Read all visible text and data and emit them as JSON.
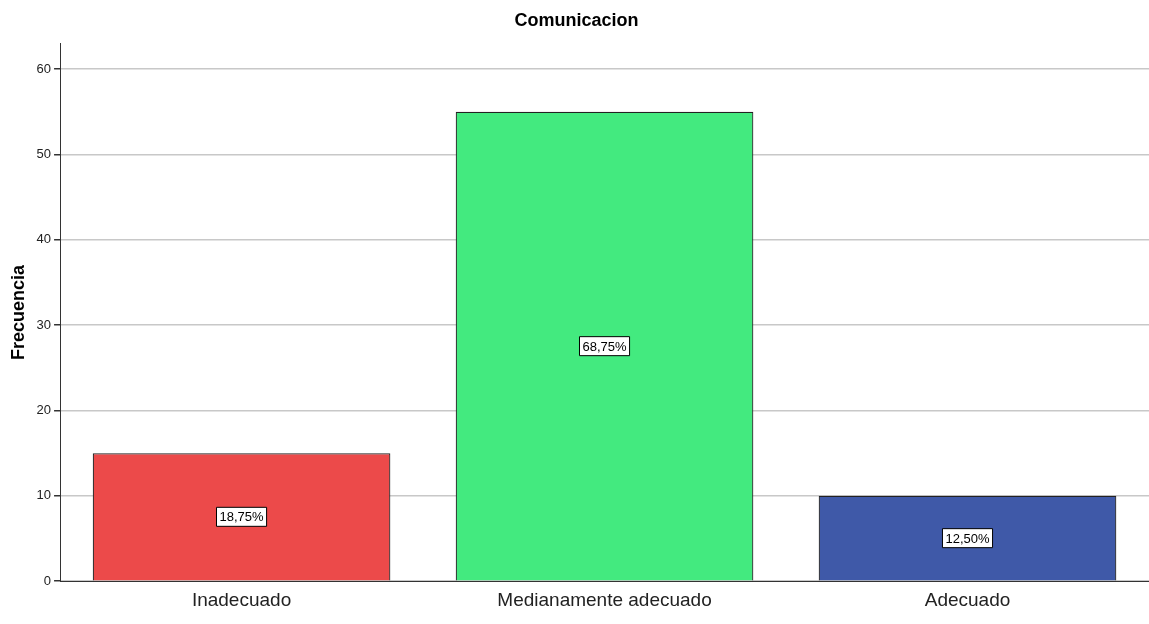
{
  "chart_data": {
    "type": "bar",
    "title": "Comunicacion",
    "ylabel": "Frecuencia",
    "categories": [
      "Inadecuado",
      "Medianamente adecuado",
      "Adecuado"
    ],
    "values": [
      15,
      55,
      10
    ],
    "colors": [
      "#ec4a4a",
      "#43ea7f",
      "#3f59a8"
    ],
    "annotations": [
      "18,75%",
      "68,75%",
      "12,50%"
    ],
    "ylim": [
      0,
      63
    ],
    "yticks": [
      0,
      10,
      20,
      30,
      40,
      50,
      60
    ],
    "grid": "y",
    "legend": false
  }
}
